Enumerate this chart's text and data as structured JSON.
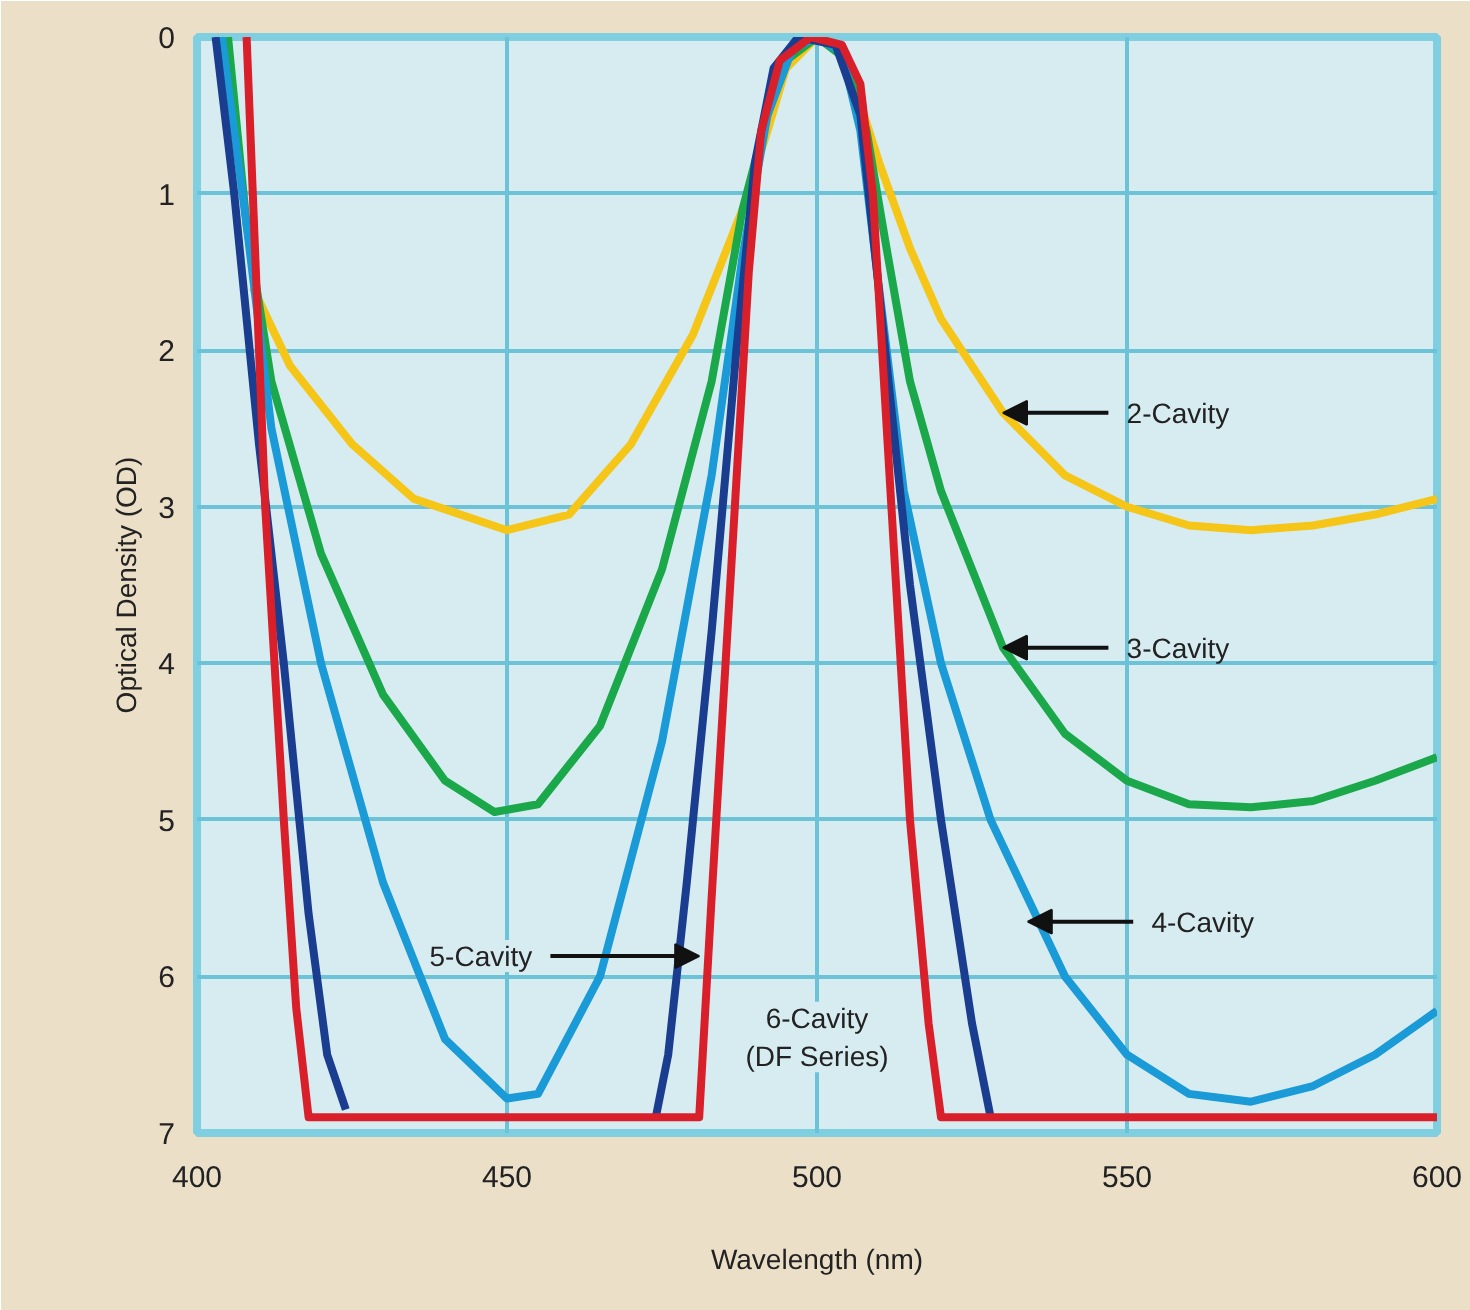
{
  "chart_data": {
    "type": "line",
    "xlabel": "Wavelength (nm)",
    "ylabel": "Optical Density (OD)",
    "xlim": [
      400,
      600
    ],
    "xticks": [
      400,
      450,
      500,
      550,
      600
    ],
    "ylim": [
      7,
      0
    ],
    "yticks": [
      0,
      1,
      2,
      3,
      4,
      5,
      6,
      7
    ],
    "grid": true,
    "series": [
      {
        "color": "#f5c518",
        "x": [
          409,
          415,
          425,
          435,
          450,
          460,
          470,
          480,
          488,
          492,
          495,
          500,
          503,
          506,
          510,
          515,
          520,
          530,
          540,
          550,
          560,
          570,
          580,
          590,
          600
        ],
        "values": [
          1.6,
          2.1,
          2.6,
          2.95,
          3.15,
          3.05,
          2.6,
          1.9,
          1.1,
          0.6,
          0.2,
          0,
          0.05,
          0.3,
          0.8,
          1.35,
          1.8,
          2.4,
          2.8,
          3.0,
          3.12,
          3.15,
          3.12,
          3.05,
          2.95
        ]
      },
      {
        "color": "#1aa84a",
        "x": [
          405,
          408,
          412,
          420,
          430,
          440,
          448,
          455,
          465,
          475,
          483,
          488,
          492,
          495,
          500,
          505,
          508,
          511,
          515,
          520,
          530,
          540,
          550,
          560,
          570,
          580,
          590,
          600
        ],
        "values": [
          0,
          1.2,
          2.2,
          3.3,
          4.2,
          4.75,
          4.95,
          4.9,
          4.4,
          3.4,
          2.2,
          1.1,
          0.5,
          0.15,
          0,
          0.15,
          0.6,
          1.3,
          2.2,
          2.9,
          3.9,
          4.45,
          4.75,
          4.9,
          4.92,
          4.88,
          4.75,
          4.6
        ]
      },
      {
        "color": "#1a9ad6",
        "x": [
          404,
          408,
          412,
          420,
          430,
          440,
          450,
          455,
          465,
          475,
          483,
          488,
          492,
          496,
          500,
          504,
          507,
          510,
          514,
          520,
          528,
          540,
          550,
          560,
          570,
          580,
          590,
          600
        ],
        "values": [
          0,
          1.2,
          2.5,
          4.0,
          5.4,
          6.4,
          6.78,
          6.75,
          6.0,
          4.5,
          2.8,
          1.4,
          0.5,
          0.08,
          0,
          0.1,
          0.6,
          1.6,
          2.9,
          4.0,
          5.0,
          6.0,
          6.5,
          6.75,
          6.8,
          6.7,
          6.5,
          6.22
        ]
      },
      {
        "color": "#1a3d8f",
        "x": [
          403,
          406,
          410,
          414,
          418,
          421,
          424,
          450,
          474,
          476,
          479,
          483,
          487,
          490,
          493,
          497,
          503,
          507,
          511,
          515,
          520,
          525,
          528
        ],
        "values": [
          0,
          1.0,
          2.6,
          4.0,
          5.6,
          6.5,
          6.85,
          null,
          6.9,
          6.5,
          5.4,
          3.8,
          2.0,
          0.8,
          0.2,
          0,
          0.05,
          0.5,
          2.0,
          3.5,
          5.0,
          6.3,
          6.9
        ]
      },
      {
        "color": "#d91f2a",
        "x": [
          408,
          409,
          411,
          414,
          416,
          418,
          481,
          483,
          486,
          489,
          491,
          494,
          499,
          504,
          507,
          509,
          512,
          515,
          518,
          520,
          600
        ],
        "values": [
          0,
          1.0,
          3.0,
          5.0,
          6.2,
          6.9,
          6.9,
          5.5,
          3.5,
          1.5,
          0.6,
          0.15,
          0,
          0.05,
          0.3,
          1.0,
          3.0,
          5.0,
          6.3,
          6.9,
          6.9
        ]
      }
    ],
    "annotations": [
      {
        "text": "2-Cavity",
        "x": 530,
        "y": 2.4
      },
      {
        "text": "3-Cavity",
        "x": 530,
        "y": 3.9
      },
      {
        "text": "4-Cavity",
        "x": 534,
        "y": 5.65
      },
      {
        "text": "5-Cavity",
        "x": 481,
        "y": 5.87
      },
      "6-Cavity\n(DF Series)"
    ]
  }
}
